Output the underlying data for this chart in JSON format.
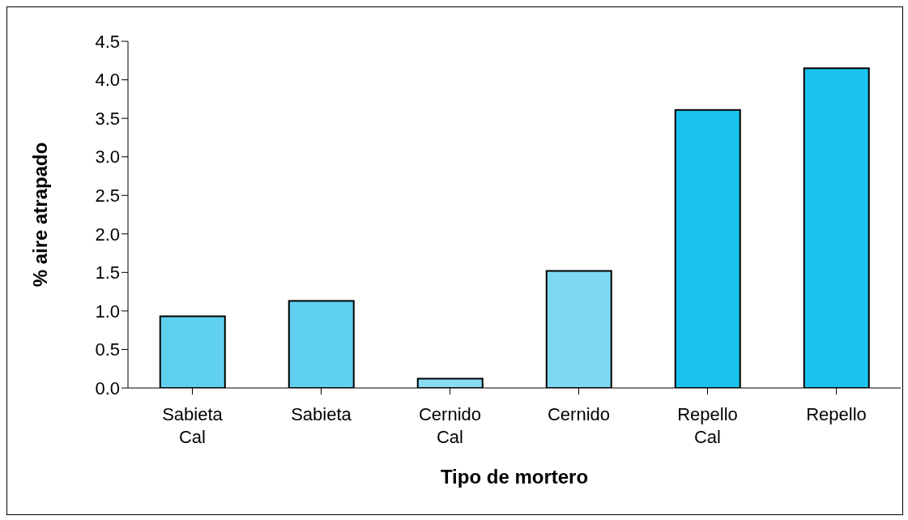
{
  "chart_data": {
    "type": "bar",
    "xlabel": "Tipo de mortero",
    "ylabel": "% aire atrapado",
    "categories": [
      "Sabieta Cal",
      "Sabieta",
      "Cernido Cal",
      "Cernido",
      "Repello Cal",
      "Repello"
    ],
    "values": [
      0.93,
      1.13,
      0.12,
      1.52,
      3.61,
      4.15
    ],
    "colors": [
      "#5fd0ee",
      "#5fd0ee",
      "#8adcf2",
      "#7fd8f2",
      "#19c3ee",
      "#19c3ee"
    ],
    "ylim": [
      0,
      4.5
    ],
    "yticks": [
      {
        "value": 0,
        "label": "0.0"
      },
      {
        "value": 0.5,
        "label": "0.5"
      },
      {
        "value": 1,
        "label": "1.0"
      },
      {
        "value": 1.5,
        "label": "1.5"
      },
      {
        "value": 2,
        "label": "2.0"
      },
      {
        "value": 2.5,
        "label": "2.5"
      },
      {
        "value": 3,
        "label": "3.0"
      },
      {
        "value": 3.5,
        "label": "3.5"
      },
      {
        "value": 4,
        "label": "4.0"
      },
      {
        "value": 4.5,
        "label": "4.5"
      }
    ],
    "grid": false,
    "legend": false
  }
}
